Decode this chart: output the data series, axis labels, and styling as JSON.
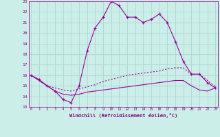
{
  "bg_color": "#cceee8",
  "grid_color": "#aad8d0",
  "line_color": "#990099",
  "x_min": 0,
  "x_max": 23,
  "y_min": 13,
  "y_max": 23,
  "line1_x": [
    0,
    1,
    2,
    3,
    4,
    5,
    6,
    7,
    8,
    9,
    10,
    11,
    12,
    13,
    14,
    15,
    16,
    17,
    18,
    19,
    20,
    21,
    22,
    23
  ],
  "line1_y": [
    16.0,
    15.6,
    15.0,
    14.5,
    13.7,
    13.4,
    15.0,
    18.3,
    20.5,
    21.5,
    23.0,
    22.6,
    21.5,
    21.5,
    21.0,
    21.3,
    21.8,
    21.0,
    19.2,
    17.3,
    16.1,
    16.1,
    15.3,
    14.8
  ],
  "line2_x": [
    0,
    1,
    2,
    3,
    4,
    5,
    6,
    7,
    8,
    9,
    10,
    11,
    12,
    13,
    14,
    15,
    16,
    17,
    18,
    19,
    20,
    21,
    22,
    23
  ],
  "line2_y": [
    16.0,
    15.5,
    15.0,
    14.8,
    14.6,
    14.5,
    14.7,
    14.9,
    15.1,
    15.4,
    15.6,
    15.8,
    16.0,
    16.1,
    16.2,
    16.3,
    16.4,
    16.6,
    16.7,
    16.7,
    16.1,
    16.1,
    15.5,
    14.9
  ],
  "line3_x": [
    0,
    1,
    2,
    3,
    4,
    5,
    6,
    7,
    8,
    9,
    10,
    11,
    12,
    13,
    14,
    15,
    16,
    17,
    18,
    19,
    20,
    21,
    22,
    23
  ],
  "line3_y": [
    16.0,
    15.5,
    15.0,
    14.5,
    14.2,
    14.1,
    14.2,
    14.4,
    14.5,
    14.6,
    14.7,
    14.8,
    14.9,
    15.0,
    15.1,
    15.2,
    15.3,
    15.4,
    15.5,
    15.5,
    15.0,
    14.6,
    14.5,
    14.8
  ],
  "xlabel": "Windchill (Refroidissement éolien,°C)"
}
